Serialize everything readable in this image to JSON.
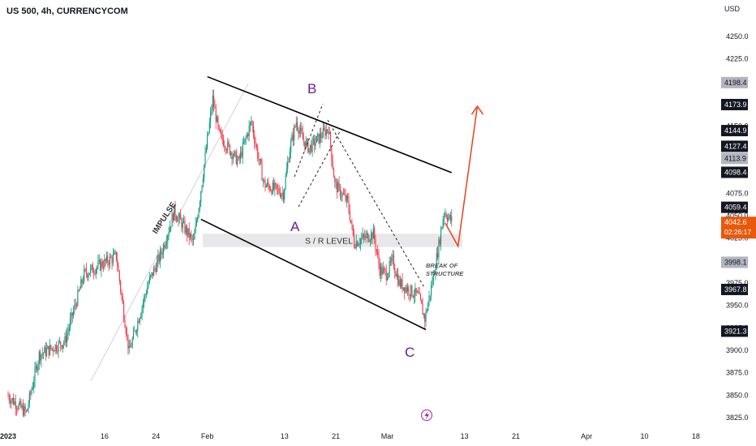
{
  "header": {
    "symbol_title": "US 500, 4h, CURRENCYCOM",
    "currency": "USD"
  },
  "colors": {
    "up": "#089981",
    "down": "#f23645",
    "wave": "#6a1b9a",
    "projection": "#e8401c",
    "price_badge": "#e8590c",
    "dark_badge": "#131722",
    "grey_badge": "#b2b5be"
  },
  "chart_data": {
    "type": "candlestick",
    "title": "US 500, 4h, CURRENCYCOM",
    "yunit": "USD",
    "ylim": [
      3815,
      4262
    ],
    "x_domain": [
      "2023-01-01",
      "2023-03-21"
    ],
    "price_ticks": [
      4250,
      4225,
      4200,
      4175,
      4150,
      4125,
      4100,
      4075,
      4050,
      4025,
      4000,
      3975,
      3950,
      3925,
      3900,
      3875,
      3850,
      3825
    ],
    "time_ticks": [
      {
        "label": "2023",
        "date": "2023-01-01",
        "bold": true
      },
      {
        "label": "16",
        "date": "2023-01-16"
      },
      {
        "label": "24",
        "date": "2023-01-24"
      },
      {
        "label": "Feb",
        "date": "2023-02-01"
      },
      {
        "label": "13",
        "date": "2023-02-13"
      },
      {
        "label": "21",
        "date": "2023-02-21"
      },
      {
        "label": "Mar",
        "date": "2023-03-01"
      },
      {
        "label": "13",
        "date": "2023-03-13"
      },
      {
        "label": "21",
        "date": "2023-03-21"
      },
      {
        "label": "Apr",
        "date": "2023-04-01"
      },
      {
        "label": "10",
        "date": "2023-04-10"
      },
      {
        "label": "18",
        "date": "2023-04-18"
      }
    ],
    "price_path": [
      [
        "2023-01-01",
        3850
      ],
      [
        "2023-01-04",
        3830
      ],
      [
        "2023-01-06",
        3895
      ],
      [
        "2023-01-10",
        3910
      ],
      [
        "2023-01-12",
        3960
      ],
      [
        "2023-01-13",
        3985
      ],
      [
        "2023-01-18",
        4005
      ],
      [
        "2023-01-19",
        3950
      ],
      [
        "2023-01-20",
        3898
      ],
      [
        "2023-01-23",
        3975
      ],
      [
        "2023-01-25",
        4008
      ],
      [
        "2023-01-27",
        4055
      ],
      [
        "2023-01-30",
        4020
      ],
      [
        "2023-01-31",
        4070
      ],
      [
        "2023-02-02",
        4180
      ],
      [
        "2023-02-03",
        4140
      ],
      [
        "2023-02-06",
        4110
      ],
      [
        "2023-02-08",
        4155
      ],
      [
        "2023-02-09",
        4118
      ],
      [
        "2023-02-10",
        4085
      ],
      [
        "2023-02-13",
        4075
      ],
      [
        "2023-02-14",
        4125
      ],
      [
        "2023-02-15",
        4155
      ],
      [
        "2023-02-16",
        4135
      ],
      [
        "2023-02-17",
        4125
      ],
      [
        "2023-02-20",
        4148
      ],
      [
        "2023-02-21",
        4085
      ],
      [
        "2023-02-23",
        4065
      ],
      [
        "2023-02-24",
        4020
      ],
      [
        "2023-02-27",
        4030
      ],
      [
        "2023-02-28",
        3990
      ],
      [
        "2023-03-01",
        3985
      ],
      [
        "2023-03-02",
        4000
      ],
      [
        "2023-03-03",
        3975
      ],
      [
        "2023-03-06",
        3960
      ],
      [
        "2023-03-07",
        3935
      ],
      [
        "2023-03-08",
        3970
      ],
      [
        "2023-03-09",
        4010
      ],
      [
        "2023-03-10",
        4055
      ],
      [
        "2023-03-11",
        4045
      ]
    ],
    "price_labels": [
      {
        "value": 4198.4,
        "text": "4198.4",
        "style": "grey"
      },
      {
        "value": 4173.9,
        "text": "4173.9",
        "style": "dark"
      },
      {
        "value": 4144.9,
        "text": "4144.9",
        "style": "dark"
      },
      {
        "value": 4127.4,
        "text": "4127.4",
        "style": "dark"
      },
      {
        "value": 4113.9,
        "text": "4113.9",
        "style": "grey"
      },
      {
        "value": 4098.4,
        "text": "4098.4",
        "style": "dark"
      },
      {
        "value": 4059.4,
        "text": "4059.4",
        "style": "dark"
      },
      {
        "value": 3998.1,
        "text": "3998.1",
        "style": "grey"
      },
      {
        "value": 3967.8,
        "text": "3967.8",
        "style": "dark"
      },
      {
        "value": 3921.3,
        "text": "3921.3",
        "style": "dark"
      }
    ],
    "last_price": {
      "value": 4042.6,
      "text": "4042.6",
      "countdown": "02:26:17"
    },
    "annotations": {
      "impulse_label": "IMPULSE",
      "wave_a": "A",
      "wave_b": "B",
      "wave_c": "C",
      "sr_label": "S / R LEVEL",
      "bos_line1": "BREAK OF",
      "bos_line2": "STRUCTURE",
      "sr_zone": [
        4015,
        4030
      ],
      "channel_upper": [
        [
          "2023-02-01",
          4205
        ],
        [
          "2023-03-11",
          4098
        ]
      ],
      "channel_lower": [
        [
          "2023-01-31",
          4046
        ],
        [
          "2023-03-07",
          3923
        ]
      ],
      "projection": [
        [
          "2023-03-10",
          4042
        ],
        [
          "2023-03-12",
          4016
        ],
        [
          "2023-03-15",
          4172
        ]
      ]
    }
  }
}
